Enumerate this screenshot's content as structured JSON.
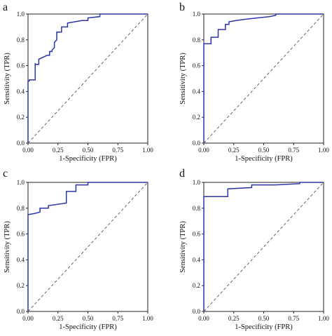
{
  "chart_data": [
    {
      "panel_label": "a",
      "type": "line",
      "xlabel": "1-Specificity (FPR)",
      "ylabel": "Sensitivity (TPR)",
      "xlim": [
        0,
        1
      ],
      "ylim": [
        0,
        1
      ],
      "x_ticks": [
        "0.00",
        "0.25",
        "0.50",
        "0.75",
        "1.00"
      ],
      "y_ticks": [
        "0.0",
        "0.2",
        "0.4",
        "0.6",
        "0.8",
        "1.0"
      ],
      "grid": false,
      "series": [
        {
          "style": "solid",
          "color": "#2b35a8",
          "x": [
            0,
            0,
            0.01,
            0.01,
            0.06,
            0.06,
            0.06,
            0.09,
            0.09,
            0.16,
            0.18,
            0.18,
            0.2,
            0.2,
            0.22,
            0.22,
            0.24,
            0.24,
            0.28,
            0.28,
            0.33,
            0.33,
            0.45,
            0.5,
            0.5,
            0.6,
            0.6,
            1.0
          ],
          "y": [
            0,
            0.48,
            0.48,
            0.49,
            0.49,
            0.62,
            0.61,
            0.61,
            0.65,
            0.68,
            0.68,
            0.71,
            0.71,
            0.72,
            0.74,
            0.78,
            0.8,
            0.86,
            0.86,
            0.9,
            0.9,
            0.93,
            0.95,
            0.95,
            0.97,
            0.98,
            1.0,
            1.0
          ]
        },
        {
          "style": "dashed",
          "color": "#555555",
          "x": [
            0,
            1
          ],
          "y": [
            0,
            1
          ]
        }
      ]
    },
    {
      "panel_label": "b",
      "type": "line",
      "xlabel": "1-Specificity (FPR)",
      "ylabel": "Sensitivity (TPR)",
      "xlim": [
        0,
        1
      ],
      "ylim": [
        0,
        1
      ],
      "x_ticks": [
        "0.00",
        "0.25",
        "0.50",
        "0.75",
        "1.00"
      ],
      "y_ticks": [
        "0.0",
        "0.2",
        "0.4",
        "0.6",
        "0.8",
        "1.0"
      ],
      "grid": false,
      "series": [
        {
          "style": "solid",
          "color": "#2b35a8",
          "x": [
            0,
            0,
            0.06,
            0.06,
            0.12,
            0.12,
            0.18,
            0.18,
            0.21,
            0.21,
            0.27,
            0.35,
            0.45,
            0.55,
            0.6,
            0.6,
            1.0
          ],
          "y": [
            0,
            0.77,
            0.77,
            0.82,
            0.82,
            0.88,
            0.88,
            0.92,
            0.92,
            0.94,
            0.95,
            0.96,
            0.97,
            0.98,
            0.99,
            1.0,
            1.0
          ]
        },
        {
          "style": "dashed",
          "color": "#555555",
          "x": [
            0,
            1
          ],
          "y": [
            0,
            1
          ]
        }
      ]
    },
    {
      "panel_label": "c",
      "type": "line",
      "xlabel": "1-Specificity (FPR)",
      "ylabel": "Sensitivity (TPR)",
      "xlim": [
        0,
        1
      ],
      "ylim": [
        0,
        1
      ],
      "x_ticks": [
        "0.00",
        "0.25",
        "0.50",
        "0.75",
        "1.00"
      ],
      "y_ticks": [
        "0.0",
        "0.2",
        "0.4",
        "0.6",
        "0.8",
        "1.0"
      ],
      "grid": false,
      "series": [
        {
          "style": "solid",
          "color": "#2b35a8",
          "x": [
            0,
            0,
            0.06,
            0.1,
            0.1,
            0.17,
            0.17,
            0.32,
            0.32,
            0.4,
            0.4,
            0.5,
            0.5,
            1.0
          ],
          "y": [
            0,
            0.75,
            0.76,
            0.77,
            0.8,
            0.8,
            0.82,
            0.84,
            0.93,
            0.93,
            0.98,
            0.98,
            1.0,
            1.0
          ]
        },
        {
          "style": "dashed",
          "color": "#555555",
          "x": [
            0,
            1
          ],
          "y": [
            0,
            1
          ]
        }
      ]
    },
    {
      "panel_label": "d",
      "type": "line",
      "xlabel": "1-Specificity (FPR)",
      "ylabel": "Sensitivity (TPR)",
      "xlim": [
        0,
        1
      ],
      "ylim": [
        0,
        1
      ],
      "x_ticks": [
        "0.00",
        "0.25",
        "0.50",
        "0.75",
        "1.00"
      ],
      "y_ticks": [
        "0.0",
        "0.2",
        "0.4",
        "0.6",
        "0.8",
        "1.0"
      ],
      "grid": false,
      "series": [
        {
          "style": "solid",
          "color": "#2b35a8",
          "x": [
            0,
            0,
            0.2,
            0.2,
            0.4,
            0.4,
            0.6,
            0.8,
            0.8,
            1.0
          ],
          "y": [
            0,
            0.89,
            0.89,
            0.95,
            0.96,
            0.98,
            0.98,
            0.99,
            1.0,
            1.0
          ]
        },
        {
          "style": "dashed",
          "color": "#555555",
          "x": [
            0,
            1
          ],
          "y": [
            0,
            1
          ]
        }
      ]
    }
  ]
}
